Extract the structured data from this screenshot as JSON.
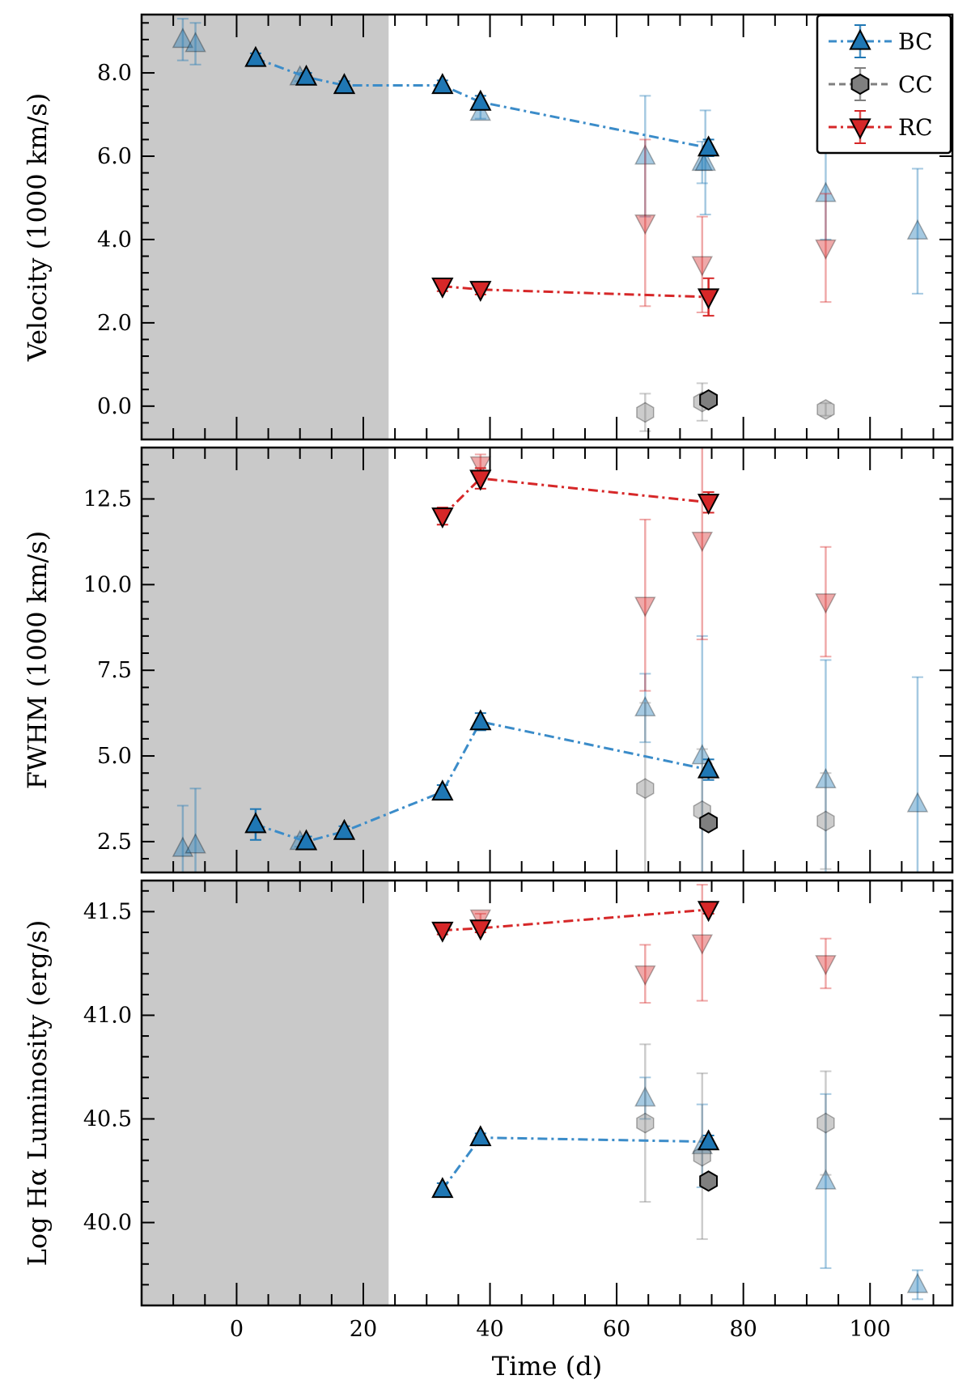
{
  "chart_data": [
    {
      "type": "scatter",
      "panel": "velocity",
      "title": "",
      "xlabel": "",
      "ylabel": "Velocity (1000 km/s)",
      "xlim": [
        -15,
        113
      ],
      "ylim": [
        -0.8,
        9.4
      ],
      "yticks": [
        0.0,
        2.0,
        4.0,
        6.0,
        8.0
      ],
      "ytick_labels": [
        "0.0",
        "2.0",
        "4.0",
        "6.0",
        "8.0"
      ],
      "shaded_region": [
        -15,
        24
      ],
      "series": [
        {
          "name": "BC",
          "color": "#1f77b4",
          "marker": "triangle-up",
          "points": [
            [
              3,
              8.35,
              0.12
            ],
            [
              11,
              7.9,
              0.1
            ],
            [
              17,
              7.7,
              0.1
            ],
            [
              32.5,
              7.7,
              0.12
            ],
            [
              38.5,
              7.3,
              0.15
            ],
            [
              74.5,
              6.2,
              0.2
            ]
          ],
          "faint_points": [
            [
              -8.5,
              8.8,
              0.5
            ],
            [
              -6.5,
              8.7,
              0.5
            ],
            [
              10,
              7.9,
              0.1
            ],
            [
              38.5,
              7.05,
              0.15
            ],
            [
              64.5,
              6.0,
              1.45
            ],
            [
              73.5,
              5.85,
              0.5
            ],
            [
              74,
              5.85,
              1.25
            ],
            [
              93,
              5.1,
              1.1
            ],
            [
              107.5,
              4.2,
              1.5
            ]
          ]
        },
        {
          "name": "CC",
          "color": "#7f7f7f",
          "marker": "hexagon",
          "points": [
            [
              74.5,
              0.15,
              0.05
            ]
          ],
          "faint_points": [
            [
              64.5,
              -0.15,
              0.45
            ],
            [
              73.5,
              0.1,
              0.45
            ],
            [
              93,
              -0.08,
              0.15
            ]
          ]
        },
        {
          "name": "RC",
          "color": "#d62728",
          "marker": "triangle-down",
          "points": [
            [
              32.5,
              2.88,
              0.12
            ],
            [
              38.5,
              2.8,
              0.12
            ],
            [
              74.5,
              2.62,
              0.45
            ]
          ],
          "faint_points": [
            [
              64.5,
              4.4,
              2.0
            ],
            [
              73.5,
              3.4,
              1.15
            ],
            [
              93,
              3.8,
              1.3
            ]
          ]
        }
      ]
    },
    {
      "type": "scatter",
      "panel": "fwhm",
      "title": "",
      "xlabel": "",
      "ylabel": "FWHM (1000 km/s)",
      "xlim": [
        -15,
        113
      ],
      "ylim": [
        1.6,
        14.0
      ],
      "yticks": [
        2.5,
        5.0,
        7.5,
        10.0,
        12.5
      ],
      "ytick_labels": [
        "2.5",
        "5.0",
        "7.5",
        "10.0",
        "12.5"
      ],
      "shaded_region": [
        -15,
        24
      ],
      "series": [
        {
          "name": "BC",
          "color": "#1f77b4",
          "marker": "triangle-up",
          "points": [
            [
              3,
              3.0,
              0.45
            ],
            [
              11,
              2.5,
              0.15
            ],
            [
              17,
              2.8,
              0.15
            ],
            [
              32.5,
              3.95,
              0.2
            ],
            [
              38.5,
              6.0,
              0.25
            ],
            [
              74.5,
              4.6,
              0.3
            ]
          ],
          "faint_points": [
            [
              -8.5,
              2.3,
              1.25
            ],
            [
              -6.5,
              2.4,
              1.65
            ],
            [
              10,
              2.5,
              0.15
            ],
            [
              64.5,
              6.4,
              1.0
            ],
            [
              73.5,
              5.0,
              3.5
            ],
            [
              93,
              4.3,
              3.5
            ],
            [
              107.5,
              3.6,
              3.7
            ]
          ]
        },
        {
          "name": "CC",
          "color": "#7f7f7f",
          "marker": "hexagon",
          "points": [
            [
              74.5,
              3.05,
              0.1
            ]
          ],
          "faint_points": [
            [
              64.5,
              4.05,
              2.5
            ],
            [
              73.5,
              3.4,
              1.8
            ],
            [
              93,
              3.1,
              1.4
            ]
          ]
        },
        {
          "name": "RC",
          "color": "#d62728",
          "marker": "triangle-down",
          "points": [
            [
              32.5,
              12.0,
              0.25
            ],
            [
              38.5,
              13.1,
              0.3
            ],
            [
              74.5,
              12.4,
              0.3
            ]
          ],
          "faint_points": [
            [
              38.5,
              13.5,
              0.3
            ],
            [
              64.5,
              9.4,
              2.5
            ],
            [
              73.5,
              11.3,
              2.9
            ],
            [
              93,
              9.5,
              1.6
            ]
          ]
        }
      ]
    },
    {
      "type": "scatter",
      "panel": "luminosity",
      "title": "",
      "xlabel": "Time (d)",
      "ylabel": "Log Hα Luminosity (erg/s)",
      "xlim": [
        -15,
        113
      ],
      "ylim": [
        39.6,
        41.65
      ],
      "yticks": [
        40.0,
        40.5,
        41.0,
        41.5
      ],
      "ytick_labels": [
        "40.0",
        "40.5",
        "41.0",
        "41.5"
      ],
      "xticks": [
        0,
        20,
        40,
        60,
        80,
        100
      ],
      "xtick_labels": [
        "0",
        "20",
        "40",
        "60",
        "80",
        "100"
      ],
      "shaded_region": [
        -15,
        24
      ],
      "series": [
        {
          "name": "BC",
          "color": "#1f77b4",
          "marker": "triangle-up",
          "points": [
            [
              32.5,
              40.16,
              0.03
            ],
            [
              38.5,
              40.41,
              0.02
            ],
            [
              74.5,
              40.39,
              0.03
            ]
          ],
          "faint_points": [
            [
              64.5,
              40.6,
              0.1
            ],
            [
              73.5,
              40.37,
              0.2
            ],
            [
              93,
              40.2,
              0.42
            ],
            [
              107.5,
              39.7,
              0.07
            ]
          ]
        },
        {
          "name": "CC",
          "color": "#7f7f7f",
          "marker": "hexagon",
          "points": [
            [
              74.5,
              40.2,
              0.02
            ]
          ],
          "faint_points": [
            [
              64.5,
              40.48,
              0.38
            ],
            [
              73.5,
              40.32,
              0.4
            ],
            [
              93,
              40.48,
              0.25
            ]
          ]
        },
        {
          "name": "RC",
          "color": "#d62728",
          "marker": "triangle-down",
          "points": [
            [
              32.5,
              41.41,
              0.02
            ],
            [
              38.5,
              41.42,
              0.02
            ],
            [
              74.5,
              41.51,
              0.02
            ]
          ],
          "faint_points": [
            [
              38.5,
              41.47,
              0.02
            ],
            [
              64.5,
              41.2,
              0.14
            ],
            [
              73.5,
              41.35,
              0.28
            ],
            [
              93,
              41.25,
              0.12
            ]
          ]
        }
      ]
    }
  ],
  "legend": {
    "position": "top-right",
    "entries": [
      {
        "label": "BC",
        "color": "#1f77b4",
        "line_color": "#3b8cc9",
        "marker": "triangle-up",
        "linestyle": "dashdot"
      },
      {
        "label": "CC",
        "color": "#7f7f7f",
        "line_color": "#7f7f7f",
        "marker": "hexagon",
        "linestyle": "dashed"
      },
      {
        "label": "RC",
        "color": "#d62728",
        "line_color": "#d62728",
        "marker": "triangle-down",
        "linestyle": "dashdot"
      }
    ]
  },
  "colors": {
    "shade": "#c9c9c9",
    "axis": "#000000"
  }
}
